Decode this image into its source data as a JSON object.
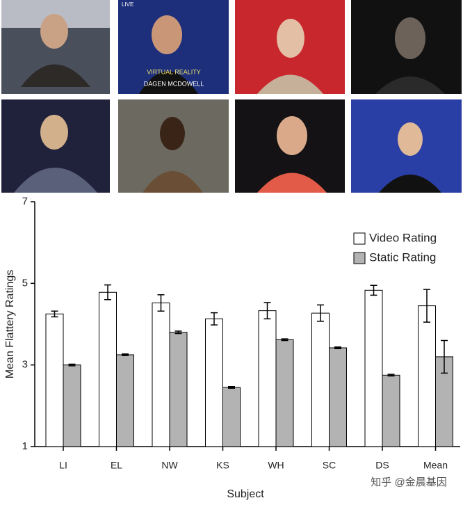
{
  "chart_data": {
    "type": "bar",
    "x_label": "Subject",
    "y_label": "Mean Flattery Ratings",
    "categories": [
      "LI",
      "EL",
      "NW",
      "KS",
      "WH",
      "SC",
      "DS",
      "Mean"
    ],
    "series": [
      {
        "name": "Video Rating",
        "color": "#ffffff",
        "values": [
          4.25,
          4.78,
          4.52,
          4.13,
          4.33,
          4.27,
          4.83,
          4.45
        ],
        "errors": [
          0.07,
          0.18,
          0.2,
          0.15,
          0.2,
          0.2,
          0.12,
          0.4
        ]
      },
      {
        "name": "Static Rating",
        "color": "#b3b3b3",
        "values": [
          3.0,
          3.25,
          3.8,
          2.45,
          3.62,
          3.42,
          2.75,
          3.2
        ],
        "errors": [
          0.02,
          0.02,
          0.03,
          0.02,
          0.02,
          0.02,
          0.02,
          0.4
        ]
      }
    ],
    "ylim": [
      1,
      7
    ],
    "yticks": [
      1,
      3,
      5,
      7
    ],
    "legend": "upper right"
  },
  "images": {
    "texts": [
      "LIVE",
      "VIRTUAL REALITY",
      "DAGEN MCDOWELL"
    ]
  },
  "watermark": "知乎 @金晨基因"
}
